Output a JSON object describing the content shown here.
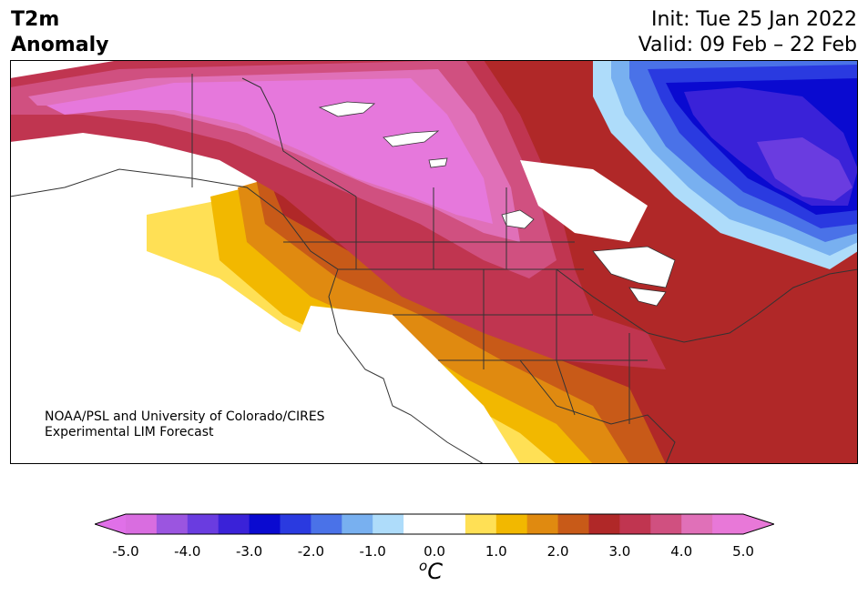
{
  "title": {
    "line1": "T2m",
    "line2": "Anomaly"
  },
  "init": "Init: Tue 25 Jan 2022",
  "valid": "Valid: 09 Feb – 22 Feb",
  "credit": {
    "line1": "NOAA/PSL and University of Colorado/CIRES",
    "line2": "Experimental LIM Forecast"
  },
  "colorbar": {
    "ticks": [
      "-5.0",
      "-4.0",
      "-3.0",
      "-2.0",
      "-1.0",
      "0.0",
      "1.0",
      "2.0",
      "3.0",
      "4.0",
      "5.0"
    ],
    "unit_base": "C",
    "unit_sup": "o",
    "colors": [
      "#d96de0",
      "#9b55e0",
      "#6a3ce0",
      "#3a22d8",
      "#0a0ad0",
      "#2a3ae0",
      "#4a72e8",
      "#78b0f0",
      "#aedcfa",
      "#ffffff",
      "#ffffff",
      "#ffe055",
      "#f2b800",
      "#e08a10",
      "#c85a18",
      "#b02828",
      "#c03550",
      "#d05080",
      "#e070b8",
      "#e878d8"
    ],
    "under_color": "#e070e8",
    "over_color": "#e878d8"
  },
  "map_colors": {
    "ocean": "#ffffff",
    "land_neutral": "#ffffff",
    "yellow": "#ffe055",
    "gold": "#f2b800",
    "orange": "#e08a10",
    "darkorange": "#c85a18",
    "red": "#b02828",
    "crimson": "#c03550",
    "pink": "#d05080",
    "hotpink": "#e070b8",
    "magenta": "#e678dc",
    "lightblue": "#aedcfa",
    "skyblue": "#78b0f0",
    "blue": "#4a72e8",
    "royalblue": "#2a3ae0",
    "deepblue": "#0a0ad0",
    "indigo": "#3a22d8",
    "violet": "#6a3ce0",
    "outline": "#333333"
  }
}
